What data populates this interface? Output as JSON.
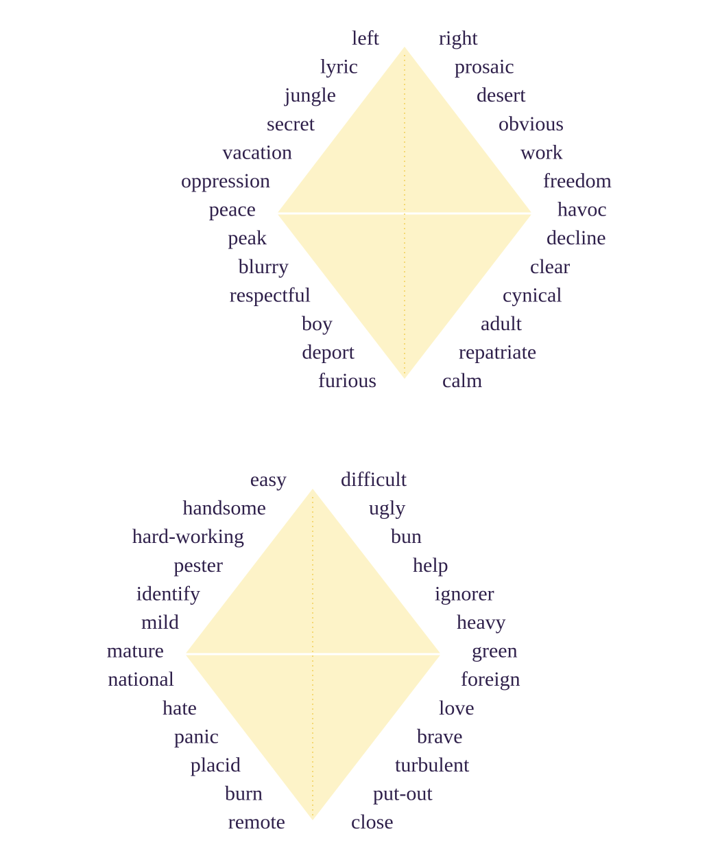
{
  "colors": {
    "diamond_fill": "#fdf3c8",
    "center_line": "#ffffff",
    "axis_dots": "#f2cf55",
    "text": "#2e1f4a"
  },
  "diagrams": [
    {
      "id": "diamond-1",
      "left_words": [
        "left",
        "lyric",
        "jungle",
        "secret",
        "vacation",
        "oppression",
        "peace",
        "peak",
        "blurry",
        "respectful",
        "boy",
        "deport",
        "furious"
      ],
      "right_words": [
        "right",
        "prosaic",
        "desert",
        "obvious",
        "work",
        "freedom",
        "havoc",
        "decline",
        "clear",
        "cynical",
        "adult",
        "repatriate",
        "calm"
      ]
    },
    {
      "id": "diamond-2",
      "left_words": [
        "easy",
        "handsome",
        "hard-working",
        "pester",
        "identify",
        "mild",
        "mature",
        "national",
        "hate",
        "panic",
        "placid",
        "burn",
        "remote"
      ],
      "right_words": [
        "difficult",
        "ugly",
        "bun",
        "help",
        "ignorer",
        "heavy",
        "green",
        "foreign",
        "love",
        "brave",
        "turbulent",
        "put-out",
        "close"
      ]
    }
  ]
}
